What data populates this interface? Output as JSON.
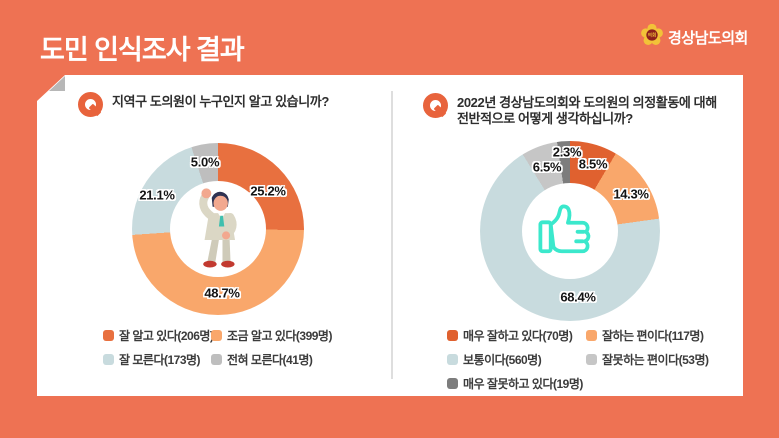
{
  "page": {
    "title": "도민 인식조사 결과",
    "logo": {
      "org": "경상남도의회",
      "emblem_text": "의회"
    }
  },
  "colors": {
    "background": "#EE7253",
    "card": "#FFFFFF",
    "accent_orange": "#E8633C",
    "divider": "#DEDEDE"
  },
  "charts": [
    {
      "id": "awareness",
      "question_lines": [
        "지역구 도의원이 누구인지 알고 있습니까?"
      ],
      "center_icon": "person-illustration",
      "segments": [
        {
          "label": "잘 알고 있다",
          "count": 206,
          "percent": 25.2,
          "percent_label": "25.2%",
          "legend": "잘 알고 있다(206명)",
          "color": "#E8703F"
        },
        {
          "label": "조금 알고 있다",
          "count": 399,
          "percent": 48.7,
          "percent_label": "48.7%",
          "legend": "조금 알고 있다(399명)",
          "color": "#F9A76B"
        },
        {
          "label": "잘 모른다",
          "count": 173,
          "percent": 21.1,
          "percent_label": "21.1%",
          "legend": "잘 모른다(173명)",
          "color": "#C8DBDE"
        },
        {
          "label": "전혀 모른다",
          "count": 41,
          "percent": 5.0,
          "percent_label": "5.0%",
          "legend": "전혀 모른다(41명)",
          "color": "#BEBEBE"
        }
      ]
    },
    {
      "id": "evaluation",
      "question_lines": [
        "2022년 경상남도의회와 도의원의 의정활동에 대해",
        "전반적으로 어떻게 생각하십니까?"
      ],
      "center_icon": "thumbs-up-icon",
      "segments": [
        {
          "label": "매우 잘하고 있다",
          "count": 70,
          "percent": 8.5,
          "percent_label": "8.5%",
          "legend": "매우 잘하고 있다(70명)",
          "color": "#E0612F"
        },
        {
          "label": "잘하는 편이다",
          "count": 117,
          "percent": 14.3,
          "percent_label": "14.3%",
          "legend": "잘하는 편이다(117명)",
          "color": "#F9A76B"
        },
        {
          "label": "보통이다",
          "count": 560,
          "percent": 68.4,
          "percent_label": "68.4%",
          "legend": "보통이다(560명)",
          "color": "#C8DBDE"
        },
        {
          "label": "잘못하는 편이다",
          "count": 53,
          "percent": 6.5,
          "percent_label": "6.5%",
          "legend": "잘못하는 편이다(53명)",
          "color": "#C6C6C6"
        },
        {
          "label": "매우 잘못하고 있다",
          "count": 19,
          "percent": 2.3,
          "percent_label": "2.3%",
          "legend": "매우 잘못하고 있다(19명)",
          "color": "#7D7D7D"
        }
      ]
    }
  ],
  "chart_data": [
    {
      "type": "pie",
      "title": "지역구 도의원이 누구인지 알고 있습니까?",
      "categories": [
        "잘 알고 있다",
        "조금 알고 있다",
        "잘 모른다",
        "전혀 모른다"
      ],
      "values": [
        25.2,
        48.7,
        21.1,
        5.0
      ],
      "counts": [
        206,
        399,
        173,
        41
      ],
      "unit": "%",
      "donut": true,
      "legend_position": "bottom"
    },
    {
      "type": "pie",
      "title": "2022년 경상남도의회와 도의원의 의정활동에 대해 전반적으로 어떻게 생각하십니까?",
      "categories": [
        "매우 잘하고 있다",
        "잘하는 편이다",
        "보통이다",
        "잘못하는 편이다",
        "매우 잘못하고 있다"
      ],
      "values": [
        8.5,
        14.3,
        68.4,
        6.5,
        2.3
      ],
      "counts": [
        70,
        117,
        560,
        53,
        19
      ],
      "unit": "%",
      "donut": true,
      "legend_position": "bottom"
    }
  ]
}
